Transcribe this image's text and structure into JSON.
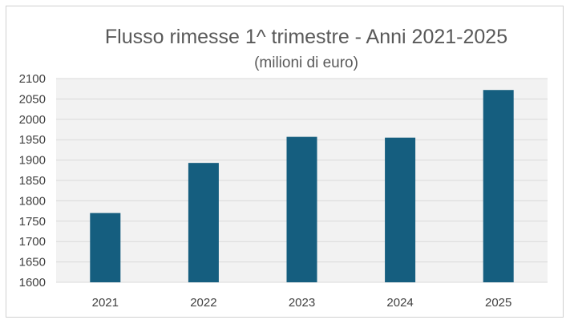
{
  "chart_data": {
    "type": "bar",
    "title": "Flusso rimesse 1^ trimestre - Anni 2021-2025",
    "subtitle": "(milioni di euro)",
    "categories": [
      "2021",
      "2022",
      "2023",
      "2024",
      "2025"
    ],
    "values": [
      1770,
      1893,
      1957,
      1955,
      2072
    ],
    "ylim": [
      1600,
      2100
    ],
    "yticks": [
      1600,
      1650,
      1700,
      1750,
      1800,
      1850,
      1900,
      1950,
      2000,
      2050,
      2100
    ],
    "grid": true,
    "bar_color": "#155e7f",
    "plot_background": "#f2f2f2",
    "grid_color": "#d9d9d9"
  }
}
